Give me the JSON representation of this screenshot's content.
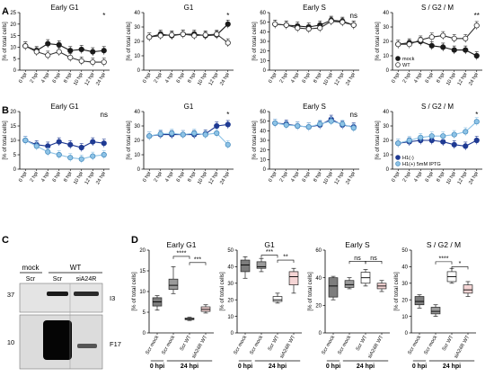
{
  "panel_letters": [
    "A",
    "B",
    "C",
    "D"
  ],
  "colors": {
    "mock_A": "#1a1a1a",
    "wt_A_fill": "#ffffff",
    "wt_A_stroke": "#333333",
    "h1_neg": "#1f3a93",
    "h1_pos": "#8ec3e6",
    "h1_pos_stroke": "#4a8fc0",
    "box_mock": "#7d7d7d",
    "box_scr_mock": "#9a9a9a",
    "box_wt": "#ffffff",
    "box_si": "#f5d5d5"
  },
  "chart_data": [
    {
      "panel": "A",
      "type": "line",
      "title": "Early G1",
      "ylabel": "[% of total cells]",
      "ylim": [
        0,
        25
      ],
      "yticks": [
        0,
        5,
        10,
        15,
        20,
        25
      ],
      "categories": [
        "0 hpi",
        "2 hpi",
        "4 hpi",
        "6 hpi",
        "8 hpi",
        "10 hpi",
        "12 hpi",
        "24 hpi"
      ],
      "significance": {
        "24 hpi": "*"
      },
      "series": [
        {
          "name": "mock",
          "values": [
            10.5,
            8.5,
            11.5,
            11,
            8.5,
            9,
            8,
            8.5
          ]
        },
        {
          "name": "WT",
          "values": [
            10.5,
            8,
            6.5,
            8,
            5.5,
            4,
            3.5,
            3.5
          ]
        }
      ]
    },
    {
      "panel": "A",
      "type": "line",
      "title": "G1",
      "ylabel": "[% of total cells]",
      "ylim": [
        0,
        40
      ],
      "yticks": [
        0,
        10,
        20,
        30,
        40
      ],
      "categories": [
        "0 hpi",
        "2 hpi",
        "4 hpi",
        "6 hpi",
        "8 hpi",
        "10 hpi",
        "12 hpi",
        "24 hpi"
      ],
      "significance": {
        "24 hpi": "*"
      },
      "series": [
        {
          "name": "mock",
          "values": [
            23,
            25,
            24,
            25,
            25,
            24,
            24.5,
            32
          ]
        },
        {
          "name": "WT",
          "values": [
            23,
            24,
            24.5,
            25,
            24,
            24.5,
            25,
            19
          ]
        }
      ]
    },
    {
      "panel": "A",
      "type": "line",
      "title": "Early S",
      "ylabel": "[% of total cells]",
      "ylim": [
        0,
        60
      ],
      "yticks": [
        0,
        10,
        20,
        30,
        40,
        50,
        60
      ],
      "categories": [
        "0 hpi",
        "2 hpi",
        "4 hpi",
        "6 hpi",
        "8 hpi",
        "10 hpi",
        "12 hpi",
        "24 hpi"
      ],
      "significance": {
        "24 hpi": "ns"
      },
      "series": [
        {
          "name": "mock",
          "values": [
            48,
            47,
            46,
            45,
            47,
            52,
            51,
            47
          ]
        },
        {
          "name": "WT",
          "values": [
            48,
            47,
            44,
            43,
            44,
            51,
            50,
            47
          ]
        }
      ]
    },
    {
      "panel": "A",
      "type": "line",
      "title": "S / G2 / M",
      "ylabel": "[% of total cells]",
      "ylim": [
        0,
        40
      ],
      "yticks": [
        0,
        10,
        20,
        30,
        40
      ],
      "categories": [
        "0 hpi",
        "2 hpi",
        "4 hpi",
        "6 hpi",
        "8 hpi",
        "10 hpi",
        "12 hpi",
        "24 hpi"
      ],
      "significance": {
        "24 hpi": "**"
      },
      "legend": [
        "mock",
        "WT"
      ],
      "series": [
        {
          "name": "mock",
          "values": [
            18,
            19,
            20,
            17,
            16,
            14,
            14,
            10
          ]
        },
        {
          "name": "WT",
          "values": [
            18,
            18,
            21,
            23,
            24,
            22,
            22,
            31
          ]
        }
      ]
    },
    {
      "panel": "B",
      "type": "line",
      "title": "Early G1",
      "ylabel": "[% of total cells]",
      "ylim": [
        0,
        20
      ],
      "yticks": [
        0,
        5,
        10,
        15,
        20
      ],
      "categories": [
        "0 hpi",
        "2 hpi",
        "4 hpi",
        "6 hpi",
        "8 hpi",
        "10 hpi",
        "12 hpi",
        "24 hpi"
      ],
      "significance": {
        "24 hpi": "ns"
      },
      "series": [
        {
          "name": "H1(-)",
          "values": [
            10,
            8.5,
            8,
            9.5,
            8.5,
            7.5,
            9.5,
            9
          ]
        },
        {
          "name": "H1(+) 5mM IPTG",
          "values": [
            10,
            8,
            6,
            5,
            4,
            3.5,
            4.5,
            5
          ]
        }
      ]
    },
    {
      "panel": "B",
      "type": "line",
      "title": "G1",
      "ylabel": "[% of total cells]",
      "ylim": [
        0,
        40
      ],
      "yticks": [
        0,
        10,
        20,
        30,
        40
      ],
      "categories": [
        "0 hpi",
        "2 hpi",
        "4 hpi",
        "6 hpi",
        "8 hpi",
        "10 hpi",
        "12 hpi",
        "24 hpi"
      ],
      "significance": {
        "24 hpi": "*"
      },
      "series": [
        {
          "name": "H1(-)",
          "values": [
            23,
            24,
            24,
            24,
            24,
            24.5,
            30,
            31
          ]
        },
        {
          "name": "H1(+) 5mM IPTG",
          "values": [
            23,
            24.5,
            25,
            24,
            25,
            24,
            25,
            17
          ]
        }
      ]
    },
    {
      "panel": "B",
      "type": "line",
      "title": "Early S",
      "ylabel": "[% of total cells]",
      "ylim": [
        0,
        60
      ],
      "yticks": [
        0,
        10,
        20,
        30,
        40,
        50,
        60
      ],
      "categories": [
        "0 hpi",
        "2 hpi",
        "4 hpi",
        "6 hpi",
        "8 hpi",
        "10 hpi",
        "12 hpi",
        "24 hpi"
      ],
      "significance": {
        "24 hpi": "ns"
      },
      "series": [
        {
          "name": "H1(-)",
          "values": [
            48,
            47,
            45,
            44,
            46,
            52,
            46,
            44
          ]
        },
        {
          "name": "H1(+) 5mM IPTG",
          "values": [
            48,
            46,
            45,
            44,
            47,
            50,
            47,
            43
          ]
        }
      ]
    },
    {
      "panel": "B",
      "type": "line",
      "title": "S / G2 / M",
      "ylabel": "[% of total cells]",
      "ylim": [
        0,
        40
      ],
      "yticks": [
        0,
        10,
        20,
        30,
        40
      ],
      "categories": [
        "0 hpi",
        "2 hpi",
        "4 hpi",
        "6 hpi",
        "8 hpi",
        "10 hpi",
        "12 hpi",
        "24 hpi"
      ],
      "significance": {
        "24 hpi": "*"
      },
      "legend": [
        "H1(-)",
        "H1(+) 5mM IPTG"
      ],
      "series": [
        {
          "name": "H1(-)",
          "values": [
            18,
            19,
            20,
            20,
            19,
            17,
            16,
            20
          ]
        },
        {
          "name": "H1(+) 5mM IPTG",
          "values": [
            18,
            20,
            22,
            23,
            23,
            24,
            26,
            33
          ]
        }
      ]
    },
    {
      "panel": "D",
      "type": "box",
      "title": "Early G1",
      "ylabel": "[% of total cells]",
      "ylim": [
        0,
        20
      ],
      "yticks": [
        0,
        5,
        10,
        15,
        20
      ],
      "categories": [
        "Scr mock",
        "Scr mock",
        "Scr WT",
        "siA24R WT"
      ],
      "group_labels": [
        {
          "label": "0 hpi",
          "from": 0,
          "to": 0
        },
        {
          "label": "24 hpi",
          "from": 1,
          "to": 3
        }
      ],
      "boxes": [
        {
          "min": 5.5,
          "q1": 6.5,
          "median": 7.5,
          "q3": 8.5,
          "max": 9
        },
        {
          "min": 9.5,
          "q1": 10.5,
          "median": 11.5,
          "q3": 13,
          "max": 16
        },
        {
          "min": 3,
          "q1": 3.2,
          "median": 3.4,
          "q3": 3.6,
          "max": 3.8
        },
        {
          "min": 4.8,
          "q1": 5.2,
          "median": 5.7,
          "q3": 6.3,
          "max": 6.8
        }
      ],
      "comparisons": [
        {
          "from": 1,
          "to": 2,
          "label": "****",
          "level": 18.5
        },
        {
          "from": 2,
          "to": 3,
          "label": "***",
          "level": 17
        }
      ]
    },
    {
      "panel": "D",
      "type": "box",
      "title": "G1",
      "ylabel": "[% of total cells]",
      "ylim": [
        0,
        50
      ],
      "yticks": [
        0,
        10,
        20,
        30,
        40,
        50
      ],
      "categories": [
        "Scr mock",
        "Scr mock",
        "Scr WT",
        "siA24R WT"
      ],
      "group_labels": [
        {
          "label": "0 hpi",
          "from": 0,
          "to": 0
        },
        {
          "label": "24 hpi",
          "from": 1,
          "to": 3
        }
      ],
      "boxes": [
        {
          "min": 33,
          "q1": 37,
          "median": 41,
          "q3": 44,
          "max": 46
        },
        {
          "min": 37,
          "q1": 39,
          "median": 40,
          "q3": 43,
          "max": 45
        },
        {
          "min": 18,
          "q1": 19,
          "median": 20,
          "q3": 22,
          "max": 24
        },
        {
          "min": 24,
          "q1": 29,
          "median": 34,
          "q3": 37,
          "max": 39
        }
      ],
      "comparisons": [
        {
          "from": 1,
          "to": 2,
          "label": "***",
          "level": 47
        },
        {
          "from": 2,
          "to": 3,
          "label": "**",
          "level": 44
        }
      ]
    },
    {
      "panel": "D",
      "type": "box",
      "title": "Early S",
      "ylabel": "[% of total cells]",
      "ylim": [
        0,
        60
      ],
      "yticks": [
        0,
        20,
        40,
        60
      ],
      "categories": [
        "Scr mock",
        "Scr mock",
        "Scr WT",
        "siA24R WT"
      ],
      "group_labels": [
        {
          "label": "0 hpi",
          "from": 0,
          "to": 0
        },
        {
          "label": "24 hpi",
          "from": 1,
          "to": 3
        }
      ],
      "boxes": [
        {
          "min": 24,
          "q1": 26,
          "median": 34,
          "q3": 40,
          "max": 41
        },
        {
          "min": 32,
          "q1": 33,
          "median": 35,
          "q3": 38,
          "max": 40
        },
        {
          "min": 34,
          "q1": 36,
          "median": 40,
          "q3": 44,
          "max": 46
        },
        {
          "min": 30,
          "q1": 32,
          "median": 34,
          "q3": 36,
          "max": 38
        }
      ],
      "comparisons": [
        {
          "from": 1,
          "to": 2,
          "label": "ns",
          "level": 52
        },
        {
          "from": 2,
          "to": 3,
          "label": "ns",
          "level": 52
        }
      ]
    },
    {
      "panel": "D",
      "type": "box",
      "title": "S / G2 / M",
      "ylabel": "[% of total cells]",
      "ylim": [
        0,
        50
      ],
      "yticks": [
        0,
        10,
        20,
        30,
        40,
        50
      ],
      "categories": [
        "Scr mock",
        "Scr mock",
        "Scr WT",
        "siA24R WT"
      ],
      "group_labels": [
        {
          "label": "0 hpi",
          "from": 0,
          "to": 0
        },
        {
          "label": "24 hpi",
          "from": 1,
          "to": 3
        }
      ],
      "boxes": [
        {
          "min": 15,
          "q1": 17,
          "median": 19,
          "q3": 22,
          "max": 23
        },
        {
          "min": 10,
          "q1": 11.5,
          "median": 13,
          "q3": 15.5,
          "max": 17
        },
        {
          "min": 30,
          "q1": 31,
          "median": 34,
          "q3": 37,
          "max": 39
        },
        {
          "min": 22,
          "q1": 24,
          "median": 26,
          "q3": 29,
          "max": 31
        }
      ],
      "comparisons": [
        {
          "from": 1,
          "to": 2,
          "label": "****",
          "level": 43
        },
        {
          "from": 2,
          "to": 3,
          "label": "*",
          "level": 40
        }
      ]
    }
  ],
  "blot": {
    "header_labels": {
      "mock": "mock",
      "wt": "WT"
    },
    "lane_labels": [
      "Scr",
      "Scr",
      "siA24R"
    ],
    "band_labels": [
      "I3",
      "F17"
    ],
    "markers": [
      "37",
      "10"
    ]
  }
}
